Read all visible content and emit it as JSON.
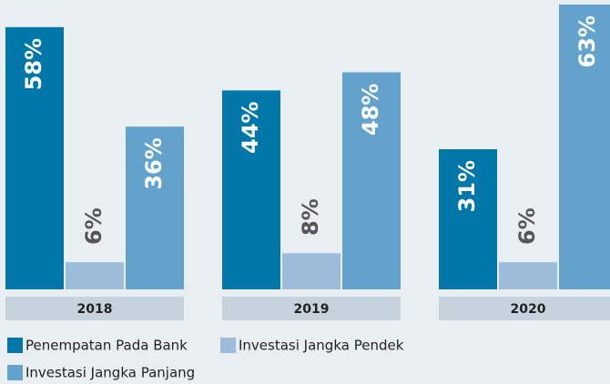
{
  "chart_data": {
    "type": "bar",
    "categories": [
      "2018",
      "2019",
      "2020"
    ],
    "series": [
      {
        "name": "Penempatan Pada Bank",
        "color": "#0077a8",
        "values": [
          58,
          44,
          31
        ],
        "value_labels": [
          "58%",
          "44%",
          "31%"
        ]
      },
      {
        "name": "Investasi Jangka Pendek",
        "color": "#9dbcd9",
        "values": [
          6,
          8,
          6
        ],
        "value_labels": [
          "6%",
          "8%",
          "6%"
        ]
      },
      {
        "name": "Investasi Jangka Panjang",
        "color": "#63a3cb",
        "values": [
          36,
          48,
          63
        ],
        "value_labels": [
          "36%",
          "48%",
          "63%"
        ]
      }
    ]
  }
}
